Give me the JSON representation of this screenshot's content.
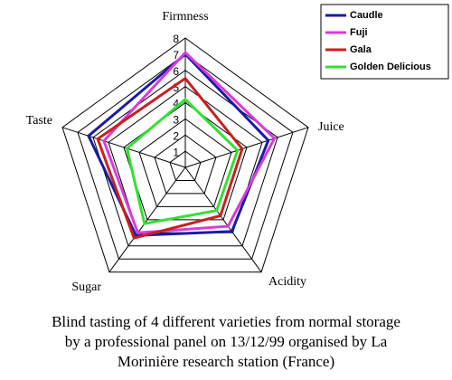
{
  "chart_data": {
    "type": "radar",
    "categories": [
      "Firmness",
      "Juice",
      "Acidity",
      "Sugar",
      "Taste"
    ],
    "rlim": [
      0,
      8
    ],
    "rticks": [
      1,
      2,
      3,
      4,
      5,
      6,
      7,
      8
    ],
    "series": [
      {
        "name": "Caudle",
        "color": "#1a1aa8",
        "values": [
          7.0,
          5.4,
          4.9,
          5.2,
          6.3
        ]
      },
      {
        "name": "Fuji",
        "color": "#d93bd9",
        "values": [
          7.1,
          5.8,
          4.5,
          5.0,
          5.3
        ]
      },
      {
        "name": "Gala",
        "color": "#c8201e",
        "values": [
          5.5,
          3.7,
          3.7,
          5.4,
          5.7
        ]
      },
      {
        "name": "Golden Delicious",
        "color": "#33e033",
        "values": [
          4.2,
          3.4,
          3.3,
          4.3,
          3.8
        ]
      }
    ],
    "legend": "upper right",
    "caption": [
      "Blind tasting of 4 different varieties from normal storage",
      "by a professional panel on 13/12/99 organised by La",
      "Morinière research station (France)"
    ]
  }
}
